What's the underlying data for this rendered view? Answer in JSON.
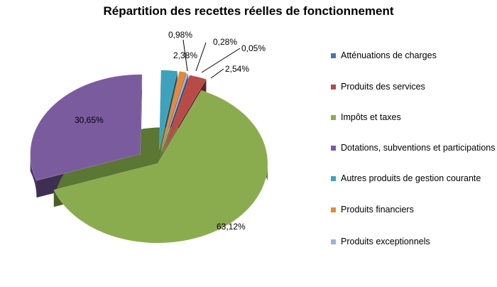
{
  "chart_data": {
    "type": "pie",
    "title": "Répartition des recettes réelles de fonctionnement",
    "legend_position": "right",
    "slices": [
      {
        "name": "Atténuations de charges",
        "value": 0.05,
        "label": "0,05%",
        "color": "#4a72b0",
        "side": "#2d4670",
        "bottom": "#24385a"
      },
      {
        "name": "Produits des services",
        "value": 2.54,
        "label": "2,54%",
        "color": "#b84a48",
        "side": "#7a2e2d",
        "bottom": "#5f2423"
      },
      {
        "name": "Impôts et taxes",
        "value": 63.12,
        "label": "63,12%",
        "color": "#8aac4f",
        "side": "#5c7633",
        "bottom": "#4a5f28"
      },
      {
        "name": "Dotations, subventions et participations",
        "value": 30.65,
        "label": "30,65%",
        "color": "#7a5c9e",
        "side": "#4d3a66",
        "bottom": "#3d2e52"
      },
      {
        "name": "Autres produits de gestion courante",
        "value": 2.38,
        "label": "2,38%",
        "color": "#3ea2bd",
        "side": "#27697b",
        "bottom": "#1f5463"
      },
      {
        "name": "Produits financiers",
        "value": 0.98,
        "label": "0,98%",
        "color": "#e8873a",
        "side": "#9c5a24",
        "bottom": "#7d481d"
      },
      {
        "name": "Produits exceptionnels",
        "value": 0.28,
        "label": "0,28%",
        "color": "#98b3d8",
        "side": "#647b9c",
        "bottom": "#50637e"
      }
    ]
  }
}
